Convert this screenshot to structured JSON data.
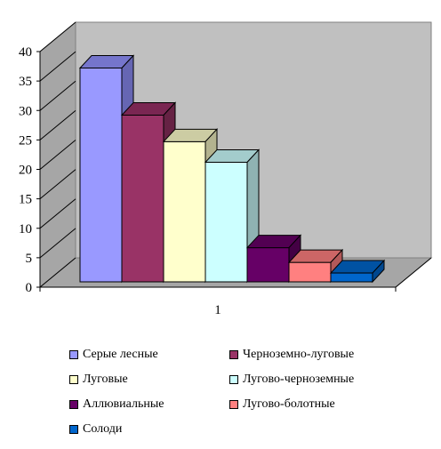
{
  "chart_data": {
    "type": "bar",
    "categories": [
      "1"
    ],
    "series": [
      {
        "name": "Серые лесные",
        "values": [
          36
        ],
        "color": "#9999ff",
        "top": "#7575cc",
        "side": "#6666b3"
      },
      {
        "name": "Черноземно-луговые",
        "values": [
          28
        ],
        "color": "#993366",
        "top": "#7a2652",
        "side": "#662244"
      },
      {
        "name": "Луговые",
        "values": [
          23.5
        ],
        "color": "#ffffcc",
        "top": "#cccca3",
        "side": "#b3b38f"
      },
      {
        "name": "Лугово-черноземные",
        "values": [
          20
        ],
        "color": "#ccffff",
        "top": "#a3cccc",
        "side": "#8fb3b3"
      },
      {
        "name": "Аллювиальные",
        "values": [
          5.5
        ],
        "color": "#660066",
        "top": "#520052",
        "side": "#440044"
      },
      {
        "name": "Лугово-болотные",
        "values": [
          3
        ],
        "color": "#ff8080",
        "top": "#cc6666",
        "side": "#b35959"
      },
      {
        "name": "Солоди",
        "values": [
          1.2
        ],
        "color": "#0066cc",
        "top": "#0052a3",
        "side": "#00478f"
      }
    ],
    "ylim": [
      0,
      40
    ],
    "yticks": [
      "0",
      "5",
      "10",
      "15",
      "20",
      "25",
      "30",
      "35",
      "40"
    ],
    "grid": false,
    "legend_position": "bottom",
    "wall_color": "#c0c0c0"
  }
}
